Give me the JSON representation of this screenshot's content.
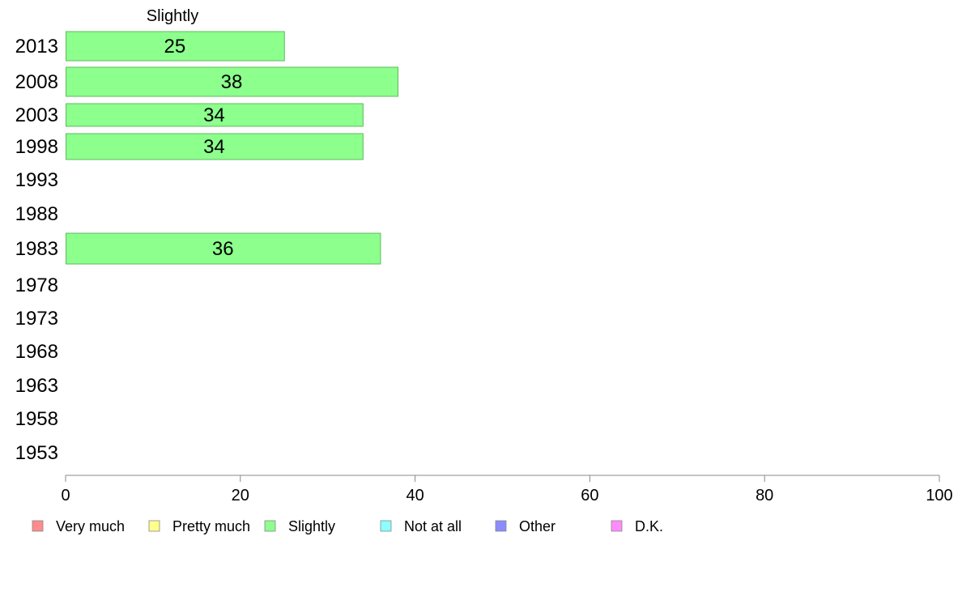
{
  "chart_data": {
    "type": "bar",
    "orientation": "horizontal",
    "series_title": "Slightly",
    "categories": [
      "2013",
      "2008",
      "2003",
      "1998",
      "1993",
      "1988",
      "1983",
      "1978",
      "1973",
      "1968",
      "1963",
      "1958",
      "1953"
    ],
    "series": [
      {
        "name": "Slightly",
        "values": [
          25,
          38,
          34,
          34,
          null,
          null,
          36,
          null,
          null,
          null,
          null,
          null,
          null
        ]
      }
    ],
    "xlim": [
      0,
      100
    ],
    "xticks": [
      0,
      20,
      40,
      60,
      80,
      100
    ],
    "grid": false,
    "legend_position": "bottom",
    "legend": [
      {
        "label": "Very much",
        "color": "#ff8c8c"
      },
      {
        "label": "Pretty much",
        "color": "#ffff8c"
      },
      {
        "label": "Slightly",
        "color": "#8cff8c"
      },
      {
        "label": "Not at all",
        "color": "#8cffff"
      },
      {
        "label": "Other",
        "color": "#8c8cff"
      },
      {
        "label": "D.K.",
        "color": "#ff8cff"
      }
    ],
    "bar_color": "#8cff8c",
    "bar_border_color": "#5fb85f",
    "axis_color": "#888888"
  }
}
